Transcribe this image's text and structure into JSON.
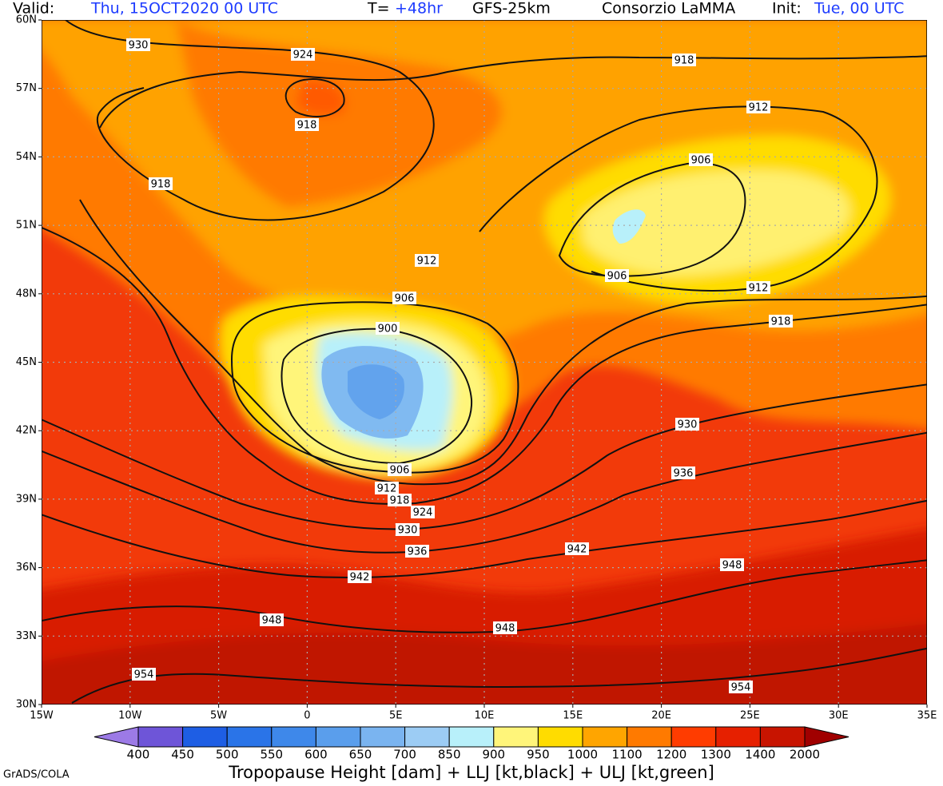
{
  "header": {
    "valid_label": "Valid:",
    "valid_time": "Thu, 15OCT2020 00 UTC",
    "step_label": "T=",
    "step": "+48hr",
    "model": "GFS-25km",
    "provider": "Consorzio LaMMA",
    "init_label": "Init:",
    "init_time": "Tue, 00 UTC"
  },
  "map": {
    "lat_labels": [
      "60N",
      "57N",
      "54N",
      "51N",
      "48N",
      "45N",
      "42N",
      "39N",
      "36N",
      "33N",
      "30N"
    ],
    "lon_labels": [
      "15W",
      "10W",
      "5W",
      "0",
      "5E",
      "10E",
      "15E",
      "20E",
      "25E",
      "30E",
      "35E"
    ],
    "contour_labels": [
      930,
      924,
      918,
      918,
      912,
      918,
      906,
      912,
      906,
      912,
      918,
      906,
      900,
      930,
      936,
      906,
      912,
      918,
      924,
      930,
      936,
      942,
      948,
      942,
      948,
      948,
      954,
      954
    ]
  },
  "colorbar": {
    "levels": [
      400,
      450,
      500,
      550,
      600,
      650,
      700,
      850,
      900,
      950,
      1000,
      1100,
      1200,
      1300,
      1400,
      2000
    ],
    "colors": [
      "#9c7ae6",
      "#6e55d8",
      "#1e5ee4",
      "#2a74e8",
      "#3e88ea",
      "#5a9eec",
      "#7ab4f0",
      "#9cccf4",
      "#b8f0fa",
      "#fff57a",
      "#ffdc00",
      "#ffa500",
      "#ff7a00",
      "#ff3c00",
      "#e62000",
      "#c81400",
      "#a00000"
    ]
  },
  "footer": {
    "credit": "GrADS/COLA",
    "title": "Tropopause Height [dam] + LLJ [kt,black] + ULJ [kt,green]"
  }
}
